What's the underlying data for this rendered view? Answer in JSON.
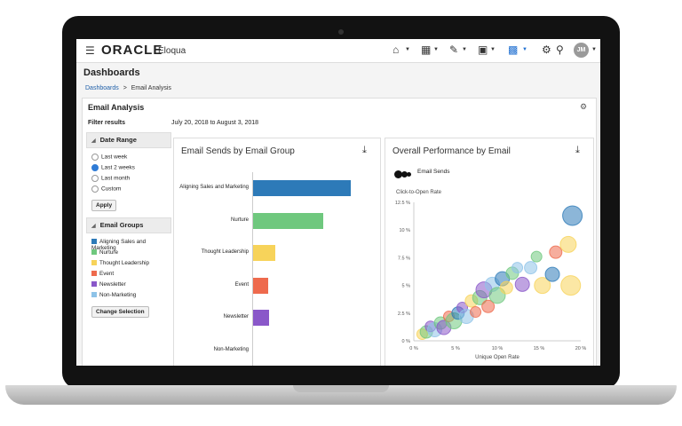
{
  "app": {
    "logo": "ORACLE",
    "logo_sub": "Eloqua",
    "menu_icon": "hamburger-icon"
  },
  "nav": {
    "icons": [
      "home-icon",
      "grid-icon",
      "edit-icon",
      "layout-icon",
      "chart-icon",
      "gear-icon",
      "search-icon"
    ],
    "user_initials": "JM"
  },
  "page": {
    "title": "Dashboards",
    "breadcrumb_link": "Dashboards",
    "breadcrumb_sep": ">",
    "breadcrumb_current": "Email Analysis"
  },
  "panel": {
    "title": "Email Analysis",
    "filter_label": "Filter results",
    "date_range": "July 20, 2018 to August 3, 2018"
  },
  "sidebar": {
    "date_range_header": "Date Range",
    "date_options": [
      {
        "label": "Last week",
        "selected": false
      },
      {
        "label": "Last 2 weeks",
        "selected": true
      },
      {
        "label": "Last month",
        "selected": false
      },
      {
        "label": "Custom",
        "selected": false
      }
    ],
    "apply_label": "Apply",
    "email_groups_header": "Email Groups",
    "groups": [
      {
        "label": "Aligning Sales and Marketing",
        "color": "#2d7ab8"
      },
      {
        "label": "Nurture",
        "color": "#6fc87e"
      },
      {
        "label": "Thought Leadership",
        "color": "#f7d35a"
      },
      {
        "label": "Event",
        "color": "#ee6a4d"
      },
      {
        "label": "Newsletter",
        "color": "#8a58c9"
      },
      {
        "label": "Non-Marketing",
        "color": "#8ec3e8"
      }
    ],
    "change_selection_label": "Change Selection"
  },
  "chart_data": [
    {
      "type": "bar",
      "title": "Email Sends by Email Group",
      "categories": [
        "Aligning Sales and Marketing",
        "Nurture",
        "Thought Leadership",
        "Event",
        "Newsletter",
        "Non-Marketing"
      ],
      "values": [
        315,
        225,
        70,
        48,
        50,
        0
      ],
      "colors": [
        "#2d7ab8",
        "#6fc87e",
        "#f7d35a",
        "#ee6a4d",
        "#8a58c9",
        "#8ec3e8"
      ],
      "xlim": [
        0,
        400
      ],
      "xticks": [
        "0",
        "100",
        "200",
        "300",
        "400"
      ]
    },
    {
      "type": "scatter",
      "title": "Overall Performance by Email",
      "legend": "Email Sends",
      "ylabel": "Click-to-Open Rate",
      "xlabel": "Unique Open Rate",
      "xlim": [
        0,
        20
      ],
      "ylim": [
        0,
        12.5
      ],
      "xticks": [
        "0 %",
        "5 %",
        "10 %",
        "15 %",
        "20 %"
      ],
      "yticks": [
        "0 %",
        "2.5 %",
        "5 %",
        "7.5 %",
        "10 %",
        "12.5 %"
      ],
      "points": [
        {
          "x": 1.0,
          "y": 0.6,
          "r": 6,
          "color": "#f7d35a"
        },
        {
          "x": 1.5,
          "y": 0.8,
          "r": 7,
          "color": "#6fc87e"
        },
        {
          "x": 2.0,
          "y": 1.3,
          "r": 6,
          "color": "#8a58c9"
        },
        {
          "x": 2.5,
          "y": 1.0,
          "r": 8,
          "color": "#8ec3e8"
        },
        {
          "x": 3.2,
          "y": 1.6,
          "r": 7,
          "color": "#6fc87e"
        },
        {
          "x": 3.6,
          "y": 1.2,
          "r": 8,
          "color": "#8a58c9"
        },
        {
          "x": 4.2,
          "y": 2.2,
          "r": 6,
          "color": "#ee6a4d"
        },
        {
          "x": 4.8,
          "y": 1.8,
          "r": 9,
          "color": "#6fc87e"
        },
        {
          "x": 5.3,
          "y": 2.5,
          "r": 7,
          "color": "#2d7ab8"
        },
        {
          "x": 5.8,
          "y": 3.0,
          "r": 6,
          "color": "#8a58c9"
        },
        {
          "x": 6.3,
          "y": 2.2,
          "r": 8,
          "color": "#8ec3e8"
        },
        {
          "x": 6.9,
          "y": 3.6,
          "r": 7,
          "color": "#f7d35a"
        },
        {
          "x": 7.4,
          "y": 2.6,
          "r": 6,
          "color": "#ee6a4d"
        },
        {
          "x": 7.9,
          "y": 3.9,
          "r": 8,
          "color": "#6fc87e"
        },
        {
          "x": 8.4,
          "y": 4.6,
          "r": 9,
          "color": "#8a58c9"
        },
        {
          "x": 8.9,
          "y": 3.1,
          "r": 7,
          "color": "#ee6a4d"
        },
        {
          "x": 9.4,
          "y": 5.1,
          "r": 8,
          "color": "#8ec3e8"
        },
        {
          "x": 10.0,
          "y": 4.1,
          "r": 9,
          "color": "#6fc87e"
        },
        {
          "x": 10.6,
          "y": 5.6,
          "r": 8,
          "color": "#2d7ab8"
        },
        {
          "x": 11.1,
          "y": 4.8,
          "r": 7,
          "color": "#f7d35a"
        },
        {
          "x": 11.8,
          "y": 6.1,
          "r": 7,
          "color": "#6fc87e"
        },
        {
          "x": 12.4,
          "y": 6.6,
          "r": 6,
          "color": "#8ec3e8"
        },
        {
          "x": 13.0,
          "y": 5.1,
          "r": 8,
          "color": "#8a58c9"
        },
        {
          "x": 14.0,
          "y": 6.6,
          "r": 7,
          "color": "#8ec3e8"
        },
        {
          "x": 14.7,
          "y": 7.6,
          "r": 6,
          "color": "#6fc87e"
        },
        {
          "x": 15.4,
          "y": 5.0,
          "r": 9,
          "color": "#f7d35a"
        },
        {
          "x": 16.6,
          "y": 6.0,
          "r": 8,
          "color": "#2d7ab8"
        },
        {
          "x": 17.0,
          "y": 8.0,
          "r": 7,
          "color": "#ee6a4d"
        },
        {
          "x": 18.5,
          "y": 8.7,
          "r": 9,
          "color": "#f7d35a"
        },
        {
          "x": 18.8,
          "y": 5.0,
          "r": 11,
          "color": "#f7d35a"
        },
        {
          "x": 19.0,
          "y": 11.3,
          "r": 11,
          "color": "#2d7ab8"
        }
      ]
    }
  ]
}
